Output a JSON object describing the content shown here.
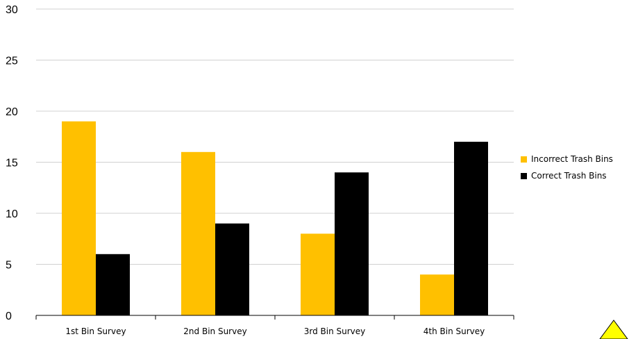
{
  "chart_data": {
    "type": "bar",
    "categories": [
      "1st Bin Survey",
      "2nd Bin Survey",
      "3rd Bin Survey",
      "4th Bin Survey"
    ],
    "series": [
      {
        "name": "Incorrect Trash Bins",
        "values": [
          19,
          16,
          8,
          4
        ],
        "color": "#FFC000"
      },
      {
        "name": "Correct Trash Bins",
        "values": [
          6,
          9,
          14,
          17
        ],
        "color": "#000000"
      }
    ],
    "yticks": [
      "0",
      "5",
      "10",
      "15",
      "20",
      "25",
      "30"
    ],
    "ylim": [
      0,
      30
    ],
    "ytick_step": 5,
    "grid": true,
    "legend_position": "right",
    "title": "",
    "xlabel": "",
    "ylabel": ""
  },
  "decorations": {
    "corner_triangle_color": "#FFFF00"
  }
}
